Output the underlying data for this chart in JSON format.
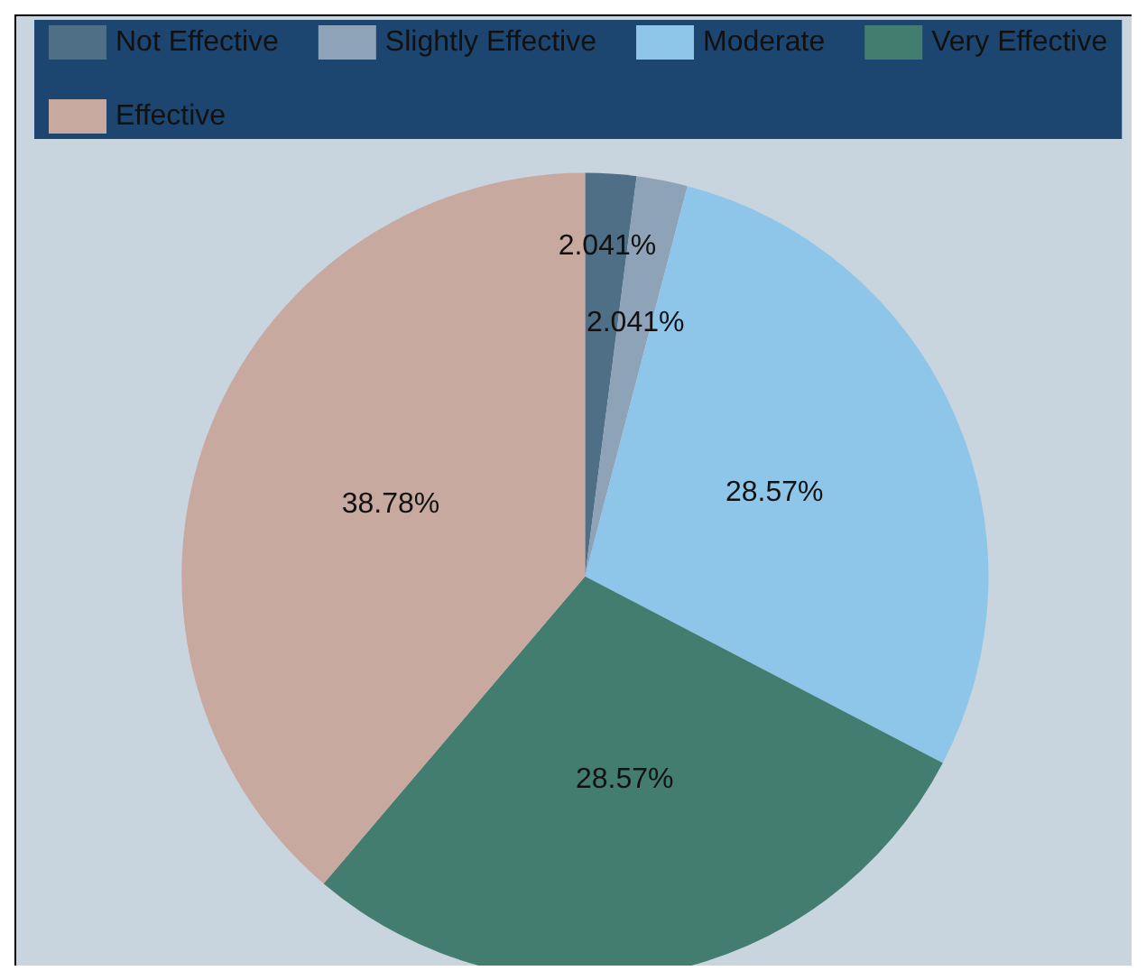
{
  "chart_data": {
    "type": "pie",
    "categories": [
      "Not Effective",
      "Slightly Effective",
      "Moderate",
      "Very Effective",
      "Effective"
    ],
    "values": [
      2.041,
      2.041,
      28.57,
      28.57,
      38.78
    ],
    "colors": [
      "#4e6f86",
      "#8fa3b8",
      "#8ec6ea",
      "#437d70",
      "#c8a9a0"
    ],
    "value_labels": [
      "2.041%",
      "2.041%",
      "28.57%",
      "28.57%",
      "38.78%"
    ],
    "legend": "top"
  }
}
